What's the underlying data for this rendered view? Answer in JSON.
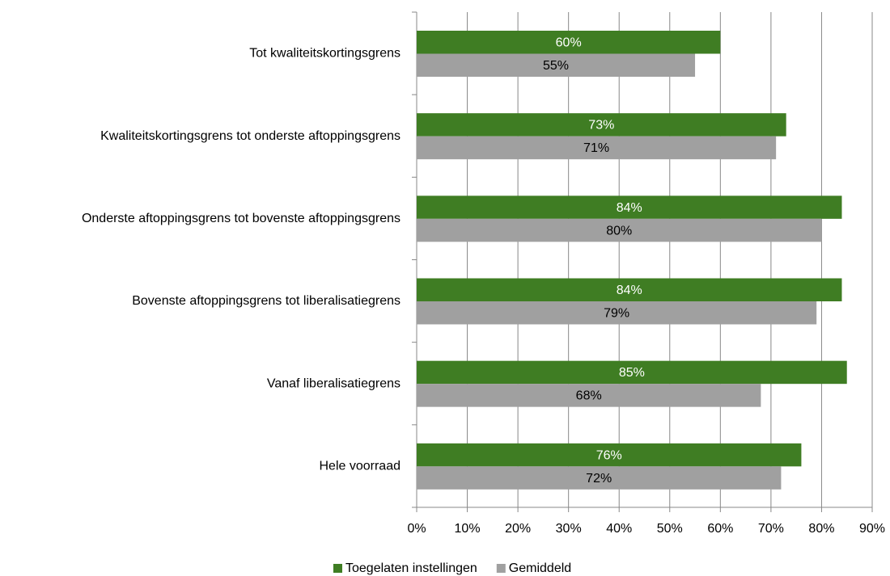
{
  "chart_data": {
    "type": "bar",
    "orientation": "horizontal",
    "categories": [
      "Tot kwaliteitskortingsgrens",
      "Kwaliteitskortingsgrens tot onderste aftoppingsgrens",
      "Onderste aftoppingsgrens tot bovenste aftoppingsgrens",
      "Bovenste aftoppingsgrens tot liberalisatiegrens",
      "Vanaf liberalisatiegrens",
      "Hele voorraad"
    ],
    "series": [
      {
        "name": "Toegelaten instellingen",
        "color": "#3f7d23",
        "values": [
          60,
          73,
          84,
          84,
          85,
          76
        ],
        "value_labels": [
          "60%",
          "73%",
          "84%",
          "84%",
          "85%",
          "76%"
        ]
      },
      {
        "name": "Gemiddeld",
        "color": "#a0a0a0",
        "values": [
          55,
          71,
          80,
          79,
          68,
          72
        ],
        "value_labels": [
          "55%",
          "71%",
          "80%",
          "79%",
          "68%",
          "72%"
        ]
      }
    ],
    "xlim": [
      0,
      90
    ],
    "xticks": [
      {
        "value": 0,
        "label": "0%"
      },
      {
        "value": 10,
        "label": "10%"
      },
      {
        "value": 20,
        "label": "20%"
      },
      {
        "value": 30,
        "label": "30%"
      },
      {
        "value": 40,
        "label": "40%"
      },
      {
        "value": 50,
        "label": "50%"
      },
      {
        "value": 60,
        "label": "60%"
      },
      {
        "value": 70,
        "label": "70%"
      },
      {
        "value": 80,
        "label": "80%"
      },
      {
        "value": 90,
        "label": "90%"
      }
    ],
    "grid": true,
    "legend": "bottom"
  }
}
